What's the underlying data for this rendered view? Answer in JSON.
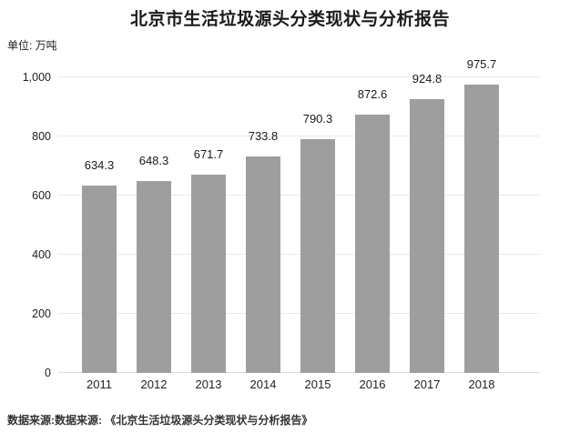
{
  "title": "北京市生活垃圾源头分类现状与分析报告",
  "unit_label": "单位: 万吨",
  "source": "数据来源:数据来源: 《北京生活垃圾源头分类现状与分析报告》",
  "chart_data": {
    "type": "bar",
    "title": "北京市生活垃圾源头分类现状与分析报告",
    "categories": [
      "2011",
      "2012",
      "2013",
      "2014",
      "2015",
      "2016",
      "2017",
      "2018"
    ],
    "values": [
      634.3,
      648.3,
      671.7,
      733.8,
      790.3,
      872.6,
      924.8,
      975.7
    ],
    "xlabel": "",
    "ylabel": "万吨",
    "ylim": [
      0,
      1000
    ],
    "yticks": [
      "0",
      "200",
      "400",
      "600",
      "800",
      "1,000"
    ],
    "grid": true,
    "legend": false,
    "bar_color": "#9e9e9e",
    "gridline_color": "#e9e9e9",
    "baseline_color": "#dddddd"
  }
}
